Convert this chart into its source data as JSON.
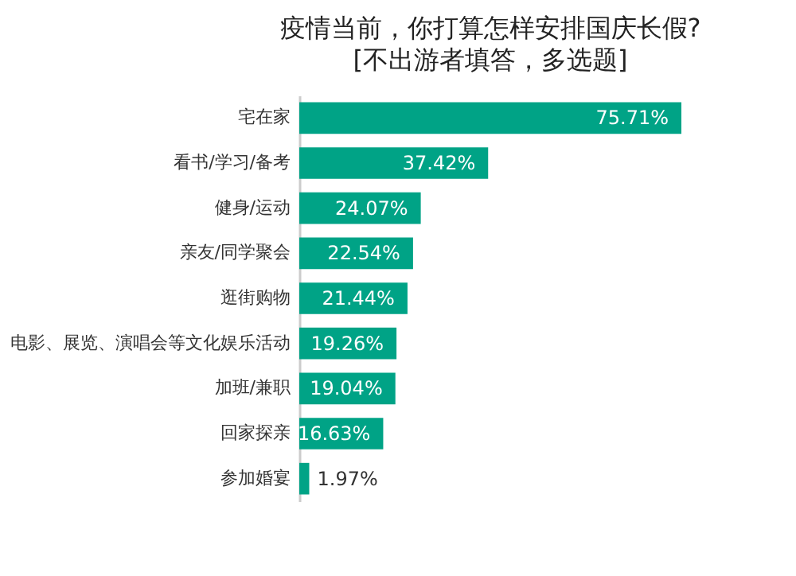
{
  "chart_data": {
    "type": "bar",
    "orientation": "horizontal",
    "title": "疫情当前，你打算怎样安排国庆长假?",
    "subtitle": "[不出游者填答，多选题]",
    "categories": [
      "宅在家",
      "看书/学习/备考",
      "健身/运动",
      "亲友/同学聚会",
      "逛街购物",
      "电影、展览、演唱会等文化娱乐活动",
      "加班/兼职",
      "回家探亲",
      "参加婚宴"
    ],
    "values": [
      75.71,
      37.42,
      24.07,
      22.54,
      21.44,
      19.26,
      19.04,
      16.63,
      1.97
    ],
    "value_labels": [
      "75.71%",
      "37.42%",
      "24.07%",
      "22.54%",
      "21.44%",
      "19.26%",
      "19.04%",
      "16.63%",
      "1.97%"
    ],
    "color": "#00a386"
  }
}
